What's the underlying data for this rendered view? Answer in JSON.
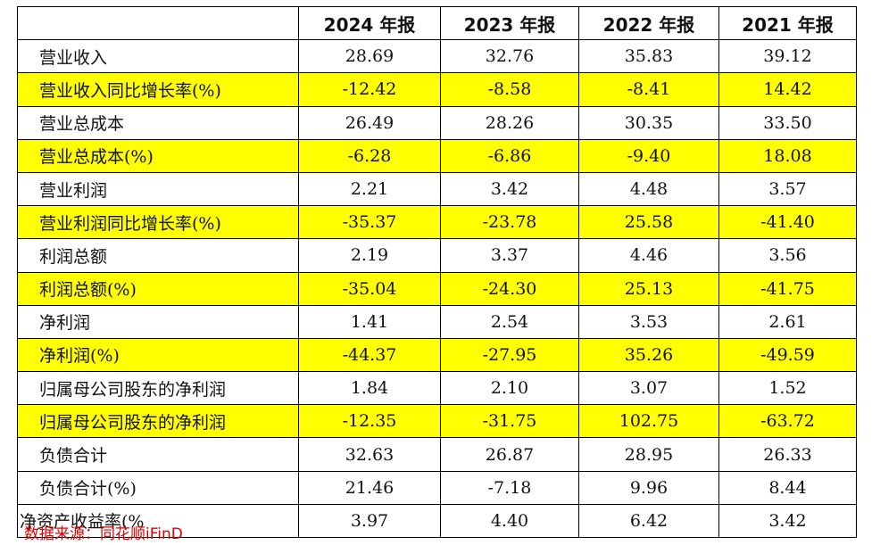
{
  "chart_data": {
    "type": "table",
    "columns": [
      "",
      "2024 年报",
      "2023 年报",
      "2022 年报",
      "2021 年报"
    ],
    "rows": [
      {
        "label": "营业收入",
        "values": [
          "28.69",
          "32.76",
          "35.83",
          "39.12"
        ],
        "highlight": false
      },
      {
        "label": "营业收入同比增长率(%)",
        "values": [
          "-12.42",
          "-8.58",
          "-8.41",
          "14.42"
        ],
        "highlight": true
      },
      {
        "label": "营业总成本",
        "values": [
          "26.49",
          "28.26",
          "30.35",
          "33.50"
        ],
        "highlight": false
      },
      {
        "label": "营业总成本(%)",
        "values": [
          "-6.28",
          "-6.86",
          "-9.40",
          "18.08"
        ],
        "highlight": true
      },
      {
        "label": "营业利润",
        "values": [
          "2.21",
          "3.42",
          "4.48",
          "3.57"
        ],
        "highlight": false
      },
      {
        "label": "营业利润同比增长率(%)",
        "values": [
          "-35.37",
          "-23.78",
          "25.58",
          "-41.40"
        ],
        "highlight": true
      },
      {
        "label": "利润总额",
        "values": [
          "2.19",
          "3.37",
          "4.46",
          "3.56"
        ],
        "highlight": false
      },
      {
        "label": "利润总额(%)",
        "values": [
          "-35.04",
          "-24.30",
          "25.13",
          "-41.75"
        ],
        "highlight": true
      },
      {
        "label": "净利润",
        "values": [
          "1.41",
          "2.54",
          "3.53",
          "2.61"
        ],
        "highlight": false
      },
      {
        "label": "净利润(%)",
        "values": [
          "-44.37",
          "-27.95",
          "35.26",
          "-49.59"
        ],
        "highlight": true
      },
      {
        "label": "归属母公司股东的净利润",
        "values": [
          "1.84",
          "2.10",
          "3.07",
          "1.52"
        ],
        "highlight": false
      },
      {
        "label": "归属母公司股东的净利润",
        "values": [
          "-12.35",
          "-31.75",
          "102.75",
          "-63.72"
        ],
        "highlight": true
      },
      {
        "label": "负债合计",
        "values": [
          "32.63",
          "26.87",
          "28.95",
          "26.33"
        ],
        "highlight": false
      },
      {
        "label": "负债合计(%)",
        "values": [
          "21.46",
          "-7.18",
          "9.96",
          "8.44"
        ],
        "highlight": false
      },
      {
        "label": "净资产收益率(%",
        "values": [
          "3.97",
          "4.40",
          "6.42",
          "3.42"
        ],
        "highlight": false,
        "flush": true
      }
    ],
    "highlight_color": "#ffff00"
  },
  "source": "数据来源：同花顺iFinD",
  "colors": {
    "source_text": "#e00000",
    "border": "#000000"
  }
}
